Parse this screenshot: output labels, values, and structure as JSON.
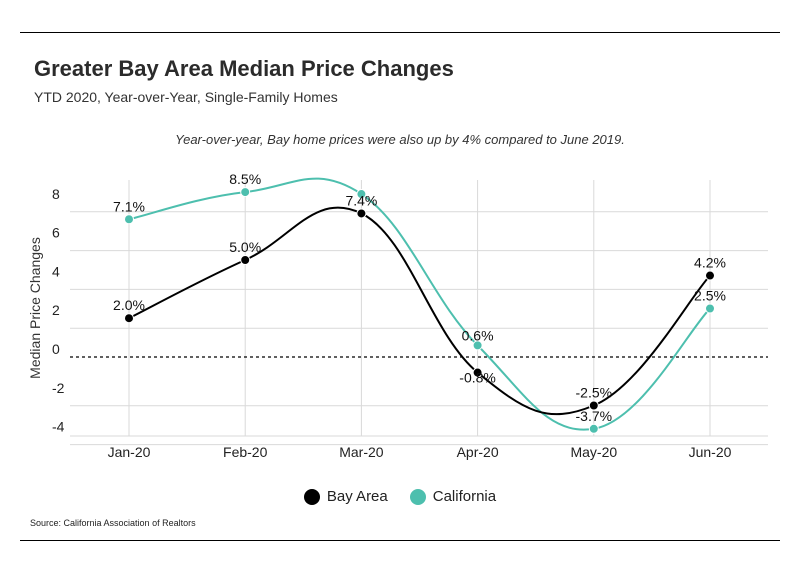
{
  "title": "Greater Bay Area Median Price Changes",
  "subtitle": "YTD 2020, Year-over-Year, Single-Family Homes",
  "annotation": "Year-over-year, Bay home prices were also up by 4% compared to June 2019.",
  "source": "Source:  California Association of Realtors",
  "chart_data": {
    "type": "line",
    "categories": [
      "Jan-20",
      "Feb-20",
      "Mar-20",
      "Apr-20",
      "May-20",
      "Jun-20"
    ],
    "ylabel": "Median Price Changes",
    "xlabel": "",
    "ylim": [
      -4,
      8
    ],
    "yticks": [
      8,
      6,
      4,
      2,
      0,
      -2,
      -4
    ],
    "grid": true,
    "zero_line": "dashed",
    "legend_position": "bottom-center",
    "series": [
      {
        "name": "Bay Area",
        "color": "#000000",
        "values": [
          2.0,
          5.0,
          7.4,
          -0.8,
          -2.5,
          4.2
        ],
        "labels": [
          "2.0%",
          "5.0%",
          "7.4%",
          "-0.8%",
          "-2.5%",
          "4.2%"
        ]
      },
      {
        "name": "California",
        "color": "#4dbfae",
        "values": [
          7.1,
          8.5,
          8.4,
          0.6,
          -3.7,
          2.5
        ],
        "labels": [
          "7.1%",
          "8.5%",
          "",
          "0.6%",
          "-3.7%",
          "2.5%"
        ]
      }
    ]
  }
}
